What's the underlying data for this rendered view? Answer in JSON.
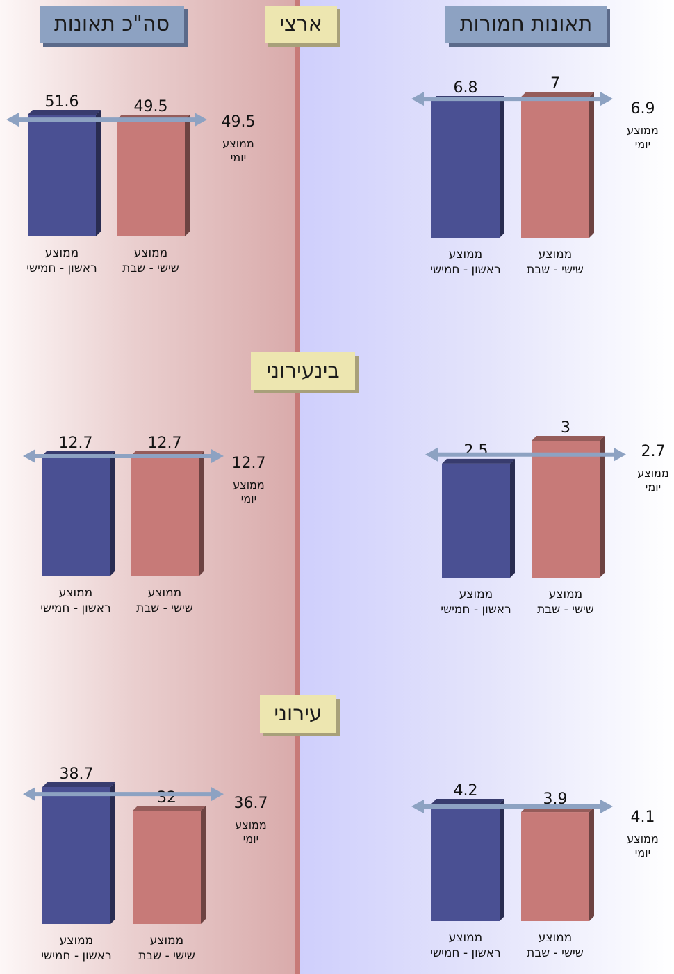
{
  "headers": {
    "total": "סה\"כ תאונות",
    "severe": "תאונות חמורות",
    "national": "ארצי",
    "intercity": "בינעירוני",
    "urban": "עירוני"
  },
  "labels": {
    "weekday_line1": "ממוצע",
    "weekday_line2": "ראשון - חמישי",
    "weekend_line1": "ממוצע",
    "weekend_line2": "שישי - שבת",
    "daily_line1": "ממוצע",
    "daily_line2": "יומי"
  },
  "colors": {
    "weekday": "#4a5093",
    "weekend": "#c77a78",
    "arrow": "#8da2c2"
  },
  "chart_data": [
    {
      "type": "bar",
      "title": "",
      "panel": "total",
      "section": "national",
      "categories": [
        "ממוצע ראשון - חמישי",
        "ממוצע שישי - שבת"
      ],
      "values": [
        51.6,
        49.5
      ],
      "daily_average": 49.5,
      "value_labels": [
        "51.6",
        "49.5"
      ],
      "daily_label": "49.5"
    },
    {
      "type": "bar",
      "title": "",
      "panel": "severe",
      "section": "national",
      "categories": [
        "ממוצע ראשון - חמישי",
        "ממוצע שישי - שבת"
      ],
      "values": [
        6.8,
        7
      ],
      "daily_average": 6.9,
      "value_labels": [
        "6.8",
        "7"
      ],
      "daily_label": "6.9"
    },
    {
      "type": "bar",
      "title": "",
      "panel": "total",
      "section": "intercity",
      "categories": [
        "ממוצע ראשון - חמישי",
        "ממוצע שישי - שבת"
      ],
      "values": [
        12.7,
        12.7
      ],
      "daily_average": 12.7,
      "value_labels": [
        "12.7",
        "12.7"
      ],
      "daily_label": "12.7"
    },
    {
      "type": "bar",
      "title": "",
      "panel": "severe",
      "section": "intercity",
      "categories": [
        "ממוצע ראשון - חמישי",
        "ממוצע שישי - שבת"
      ],
      "values": [
        2.5,
        3
      ],
      "daily_average": 2.7,
      "value_labels": [
        "2.5",
        "3"
      ],
      "daily_label": "2.7"
    },
    {
      "type": "bar",
      "title": "",
      "panel": "total",
      "section": "urban",
      "categories": [
        "ממוצע ראשון - חמישי",
        "ממוצע שישי - שבת"
      ],
      "values": [
        38.7,
        32
      ],
      "daily_average": 36.7,
      "value_labels": [
        "38.7",
        "32"
      ],
      "daily_label": "36.7"
    },
    {
      "type": "bar",
      "title": "",
      "panel": "severe",
      "section": "urban",
      "categories": [
        "ממוצע ראשון - חמישי",
        "ממוצע שישי - שבת"
      ],
      "values": [
        4.2,
        3.9
      ],
      "daily_average": 4.1,
      "value_labels": [
        "4.2",
        "3.9"
      ],
      "daily_label": "4.1"
    }
  ]
}
